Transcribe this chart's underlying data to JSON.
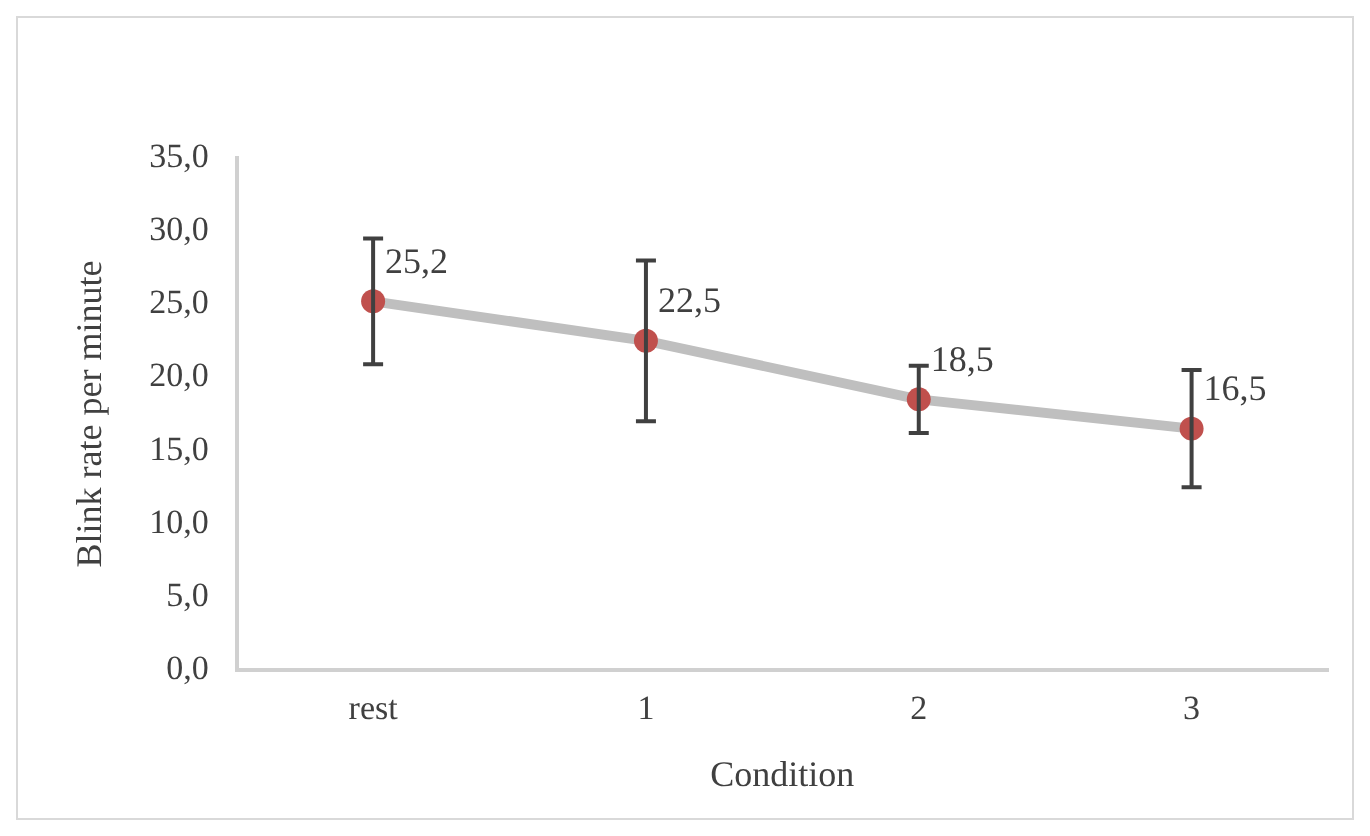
{
  "chart_data": {
    "type": "line",
    "xlabel": "Condition",
    "ylabel": "Blink rate per minute",
    "categories": [
      "rest",
      "1",
      "2",
      "3"
    ],
    "series": [
      {
        "color": "#bfbfbf",
        "colors": [
          "#c0504d",
          "#c0504d",
          "#c0504d",
          "#c0504d"
        ],
        "values": [
          25.2,
          22.5,
          18.5,
          16.5
        ],
        "errors": [
          4.3,
          5.5,
          2.3,
          4.0
        ],
        "value_labels": [
          "25,2",
          "22,5",
          "18,5",
          "16,5"
        ]
      }
    ],
    "ylim": [
      0,
      35
    ],
    "yticks": [
      {
        "value": 0,
        "label": "0,0"
      },
      {
        "value": 5,
        "label": "5,0"
      },
      {
        "value": 10,
        "label": "10,0"
      },
      {
        "value": 15,
        "label": "15,0"
      },
      {
        "value": 20,
        "label": "20,0"
      },
      {
        "value": 25,
        "label": "25,0"
      },
      {
        "value": 30,
        "label": "30,0"
      },
      {
        "value": 35,
        "label": "35,0"
      }
    ],
    "marker": "circle",
    "line_style": "solid",
    "grid": false,
    "legend": false
  }
}
